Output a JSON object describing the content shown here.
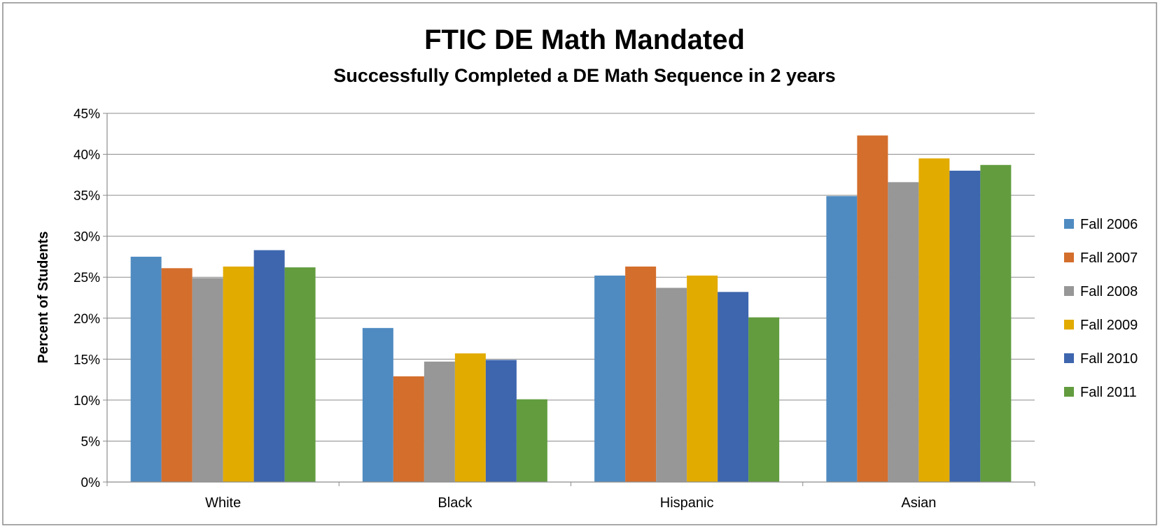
{
  "chart_data": {
    "type": "bar",
    "title": "FTIC DE Math Mandated",
    "subtitle": "Successfully Completed a DE Math Sequence in 2 years",
    "xlabel": "",
    "ylabel": "Percent of Students",
    "ylim": [
      0,
      45
    ],
    "ytick_step": 5,
    "ytick_suffix": "%",
    "grid": true,
    "legend_position": "right",
    "categories": [
      "White",
      "Black",
      "Hispanic",
      "Asian"
    ],
    "series": [
      {
        "name": "Fall 2006",
        "color": "#4F8BC1",
        "values": [
          27.5,
          18.8,
          25.2,
          34.9
        ]
      },
      {
        "name": "Fall 2007",
        "color": "#D46E2C",
        "values": [
          26.1,
          12.9,
          26.3,
          42.3
        ]
      },
      {
        "name": "Fall 2008",
        "color": "#979797",
        "values": [
          24.9,
          14.7,
          23.7,
          36.6
        ]
      },
      {
        "name": "Fall 2009",
        "color": "#E2AB00",
        "values": [
          26.3,
          15.7,
          25.2,
          39.5
        ]
      },
      {
        "name": "Fall 2010",
        "color": "#3E66AE",
        "values": [
          28.3,
          14.9,
          23.2,
          38.0
        ]
      },
      {
        "name": "Fall 2011",
        "color": "#629C3F",
        "values": [
          26.2,
          10.1,
          20.1,
          38.7
        ]
      }
    ]
  }
}
